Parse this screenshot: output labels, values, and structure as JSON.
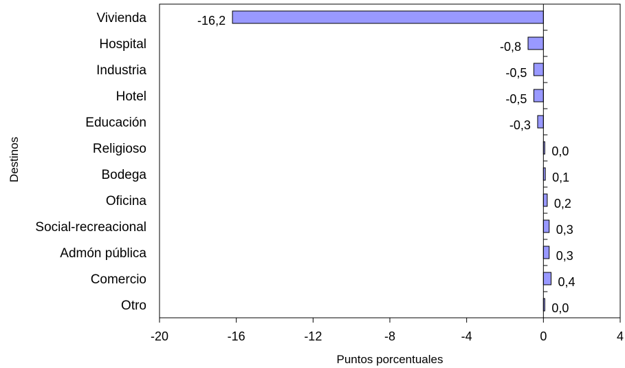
{
  "chart_data": {
    "type": "bar",
    "orientation": "horizontal",
    "categories": [
      "Vivienda",
      "Hospital",
      "Industria",
      "Hotel",
      "Educación",
      "Religioso",
      "Bodega",
      "Oficina",
      "Social-recreacional",
      "Admón pública",
      "Comercio",
      "Otro"
    ],
    "values": [
      -16.2,
      -0.8,
      -0.5,
      -0.5,
      -0.3,
      0.02,
      0.1,
      0.2,
      0.3,
      0.3,
      0.4,
      0.03
    ],
    "data_labels": [
      "-16,2",
      "-0,8",
      "-0,5",
      "-0,5",
      "-0,3",
      "0,0",
      "0,1",
      "0,2",
      "0,3",
      "0,3",
      "0,4",
      "0,0"
    ],
    "xlim": [
      -20,
      4
    ],
    "xticks": [
      -20,
      -16,
      -12,
      -8,
      -4,
      0,
      4
    ],
    "xtick_labels": [
      "-20",
      "-16",
      "-12",
      "-8",
      "-4",
      "0",
      "4"
    ],
    "xlabel": "Puntos porcentuales",
    "ylabel": "Destinos",
    "title": "",
    "grid": false,
    "bar_color": "#9999FF",
    "bar_edge_color": "#000000"
  }
}
